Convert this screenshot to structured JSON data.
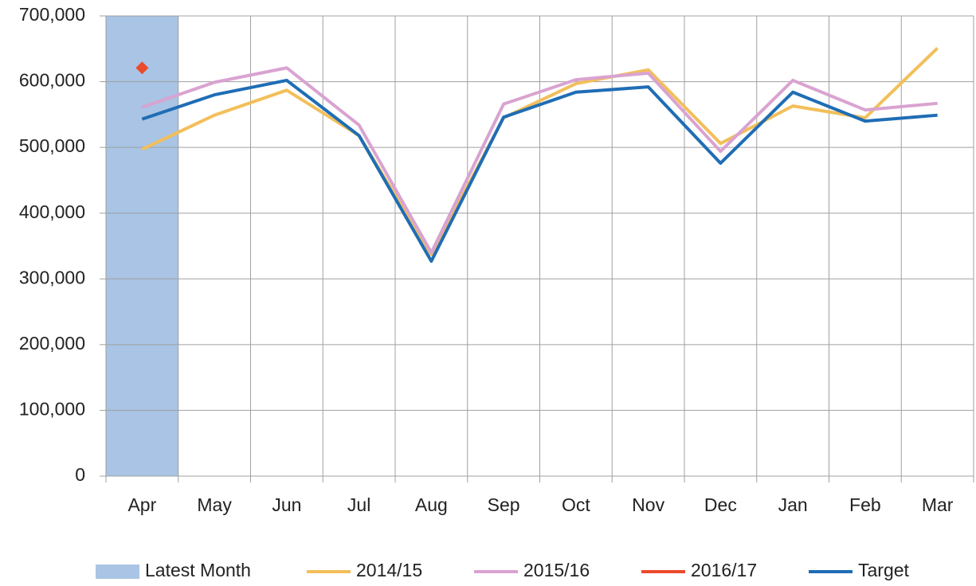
{
  "chart_data": {
    "type": "line",
    "categories": [
      "Apr",
      "May",
      "Jun",
      "Jul",
      "Aug",
      "Sep",
      "Oct",
      "Nov",
      "Dec",
      "Jan",
      "Feb",
      "Mar"
    ],
    "series": [
      {
        "name": "Latest Month",
        "type": "bar",
        "color": "#a9c4e4",
        "values": [
          700000,
          null,
          null,
          null,
          null,
          null,
          null,
          null,
          null,
          null,
          null,
          null
        ]
      },
      {
        "name": "2014/15",
        "type": "line",
        "color": "#f2bf5a",
        "values": [
          497000,
          549000,
          587000,
          518000,
          337000,
          545000,
          597000,
          618000,
          506000,
          563000,
          545000,
          651000
        ]
      },
      {
        "name": "2015/16",
        "type": "line",
        "color": "#d9a3d1",
        "values": [
          561000,
          599000,
          621000,
          534000,
          340000,
          566000,
          603000,
          613000,
          494000,
          602000,
          557000,
          567000
        ]
      },
      {
        "name": "2016/17",
        "type": "line",
        "color": "#ec4b2b",
        "values": [
          621000,
          null,
          null,
          null,
          null,
          null,
          null,
          null,
          null,
          null,
          null,
          null
        ]
      },
      {
        "name": "Target",
        "type": "line",
        "color": "#1f6db5",
        "values": [
          543000,
          580000,
          602000,
          518000,
          327000,
          546000,
          584000,
          592000,
          476000,
          584000,
          540000,
          549000
        ]
      }
    ],
    "ylim": [
      0,
      700000
    ],
    "yticks": [
      0,
      {
        "value": 100000,
        "label": "100,000"
      },
      {
        "value": 200000,
        "label": "200,000"
      },
      {
        "value": 300000,
        "label": "300,000"
      },
      {
        "value": 400000,
        "label": "400,000"
      },
      {
        "value": 500000,
        "label": "500,000"
      },
      {
        "value": 600000,
        "label": "600,000"
      },
      {
        "value": 700000,
        "label": "700,000"
      }
    ],
    "grid": true,
    "legend": "bottom"
  }
}
